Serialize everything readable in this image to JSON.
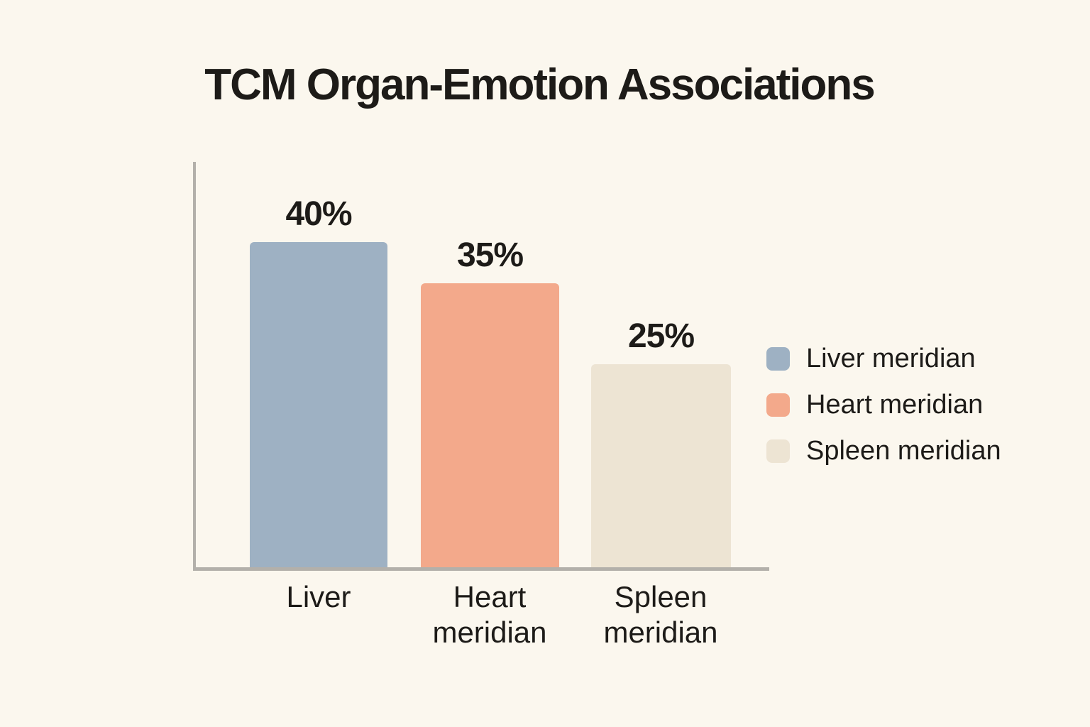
{
  "title": "TCM Organ-Emotion Associations",
  "colors": {
    "background": "#fbf7ee",
    "axis": "#b3b0aa",
    "text": "#1d1b18",
    "liver_bar": "#9eb1c3",
    "heart_bar": "#f3a98b",
    "spleen_bar": "#ede4d3"
  },
  "chart_data": {
    "type": "bar",
    "title": "TCM Organ-Emotion Associations",
    "categories": [
      "Liver",
      "Heart meridian",
      "Spleen meridian"
    ],
    "values": [
      40,
      35,
      25
    ],
    "value_labels": [
      "40%",
      "35%",
      "25%"
    ],
    "bar_colors": [
      "#9eb1c3",
      "#f3a98b",
      "#ede4d3"
    ],
    "xlabel": "",
    "ylabel": "",
    "ylim": [
      0,
      50
    ],
    "grid": false,
    "legend_position": "right",
    "legend_entries": [
      "Liver meridian",
      "Heart meridian",
      "Spleen meridian"
    ]
  },
  "legend": {
    "items": [
      {
        "label": "Liver meridian",
        "color": "#9eb1c3"
      },
      {
        "label": "Heart meridian",
        "color": "#f3a98b"
      },
      {
        "label": "Spleen meridian",
        "color": "#ede4d3"
      }
    ]
  }
}
